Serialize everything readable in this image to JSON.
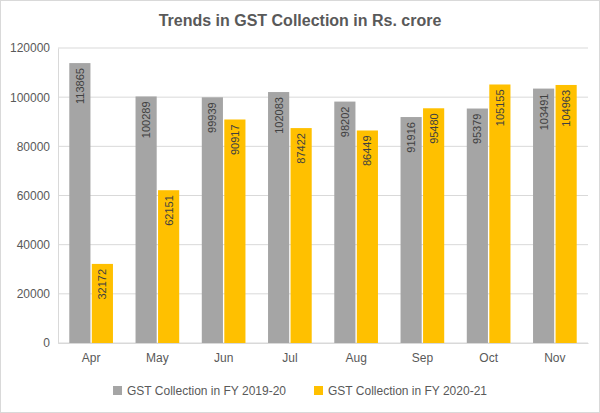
{
  "chart_data": {
    "type": "bar",
    "title": "Trends in GST Collection in Rs. crore",
    "categories": [
      "Apr",
      "May",
      "Jun",
      "Jul",
      "Aug",
      "Sep",
      "Oct",
      "Nov"
    ],
    "series": [
      {
        "name": "GST Collection in FY 2019-20",
        "color": "#a5a5a5",
        "values": [
          113865,
          100289,
          99939,
          102083,
          98202,
          91916,
          95379,
          103491
        ]
      },
      {
        "name": "GST Collection in FY 2020-21",
        "color": "#ffc000",
        "values": [
          32172,
          62151,
          90917,
          87422,
          86449,
          95480,
          105155,
          104963
        ]
      }
    ],
    "ylim": [
      0,
      120000
    ],
    "yticks": [
      0,
      20000,
      40000,
      60000,
      80000,
      100000,
      120000
    ],
    "grid": true,
    "legend": "bottom",
    "data_labels": true
  }
}
